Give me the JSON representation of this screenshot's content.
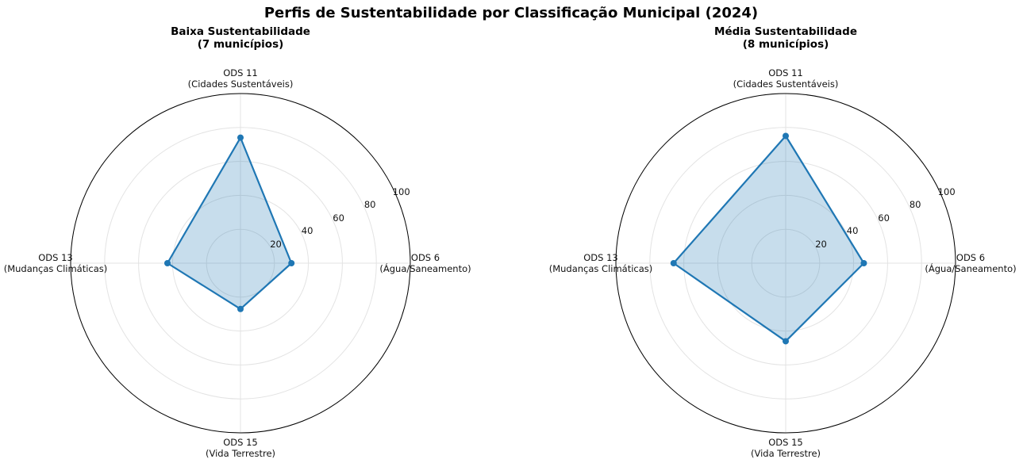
{
  "title": "Perfis de Sustentabilidade por Classificação Municipal (2024)",
  "chart_data": [
    {
      "type": "radar",
      "title": "Baixa Sustentabilidade\n(7 municípios)",
      "categories": [
        "ODS 6\n(Água/Saneamento)",
        "ODS 11\n(Cidades Sustentáveis)",
        "ODS 13\n(Mudanças Climáticas)",
        "ODS 15\n(Vida Terrestre)"
      ],
      "values": [
        30,
        74,
        43,
        27
      ],
      "color": "#1f77b4",
      "rlim": [
        0,
        100
      ],
      "rticks": [
        20,
        40,
        60,
        80,
        100
      ],
      "grid": true
    },
    {
      "type": "radar",
      "title": "Média Sustentabilidade\n(8 municípios)",
      "categories": [
        "ODS 6\n(Água/Saneamento)",
        "ODS 11\n(Cidades Sustentáveis)",
        "ODS 13\n(Mudanças Climáticas)",
        "ODS 15\n(Vida Terrestre)"
      ],
      "values": [
        46,
        75,
        66,
        46
      ],
      "color": "#1f77b4",
      "rlim": [
        0,
        100
      ],
      "rticks": [
        20,
        40,
        60,
        80,
        100
      ],
      "grid": true
    }
  ]
}
